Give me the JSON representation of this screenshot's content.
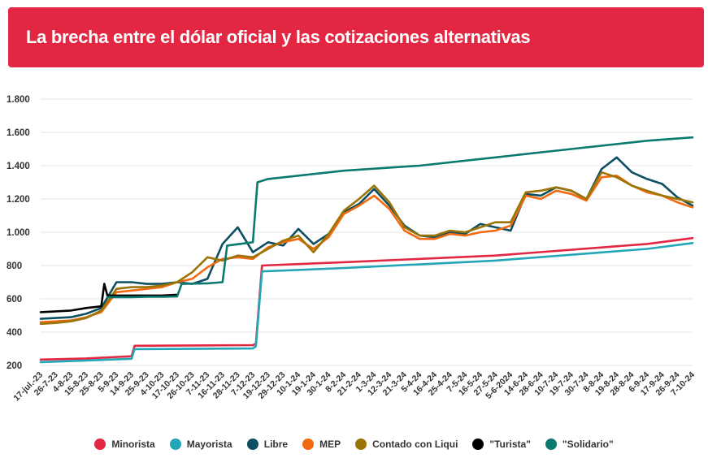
{
  "header": {
    "title": "La brecha entre el dólar oficial y las cotizaciones alternativas"
  },
  "chart_data": {
    "type": "line",
    "title": "La brecha entre el dólar oficial y las cotizaciones alternativas",
    "ylim": [
      200,
      1800
    ],
    "yticks": [
      200,
      400,
      600,
      800,
      1000,
      1200,
      1400,
      1600,
      1800
    ],
    "ytick_labels": [
      "200",
      "400",
      "600",
      "800",
      "1.000",
      "1.200",
      "1.400",
      "1.600",
      "1.800"
    ],
    "grid": true,
    "legend_position": "bottom",
    "x_labels": [
      "17-jul.-23",
      "26-7-23",
      "4-8-23",
      "15-8-23",
      "25-8-23",
      "5-9-23",
      "14-9-23",
      "25-9-23",
      "4-10-23",
      "17-10-23",
      "26-10-23",
      "7-11-23",
      "16-11-23",
      "28-11-23",
      "7-12-23",
      "19-12-23",
      "29-12-23",
      "10-1-24",
      "19-1-24",
      "30-1-24",
      "8-2-24",
      "21-2-24",
      "1-3-24",
      "12-3-24",
      "21-3-24",
      "5-4-24",
      "16-4-24",
      "25-4-24",
      "7-5-24",
      "16-5-24",
      "27-5-24",
      "5-6-2024",
      "14-6-24",
      "28-6-24",
      "10-7-24",
      "19-7-24",
      "30-7-24",
      "8-8-24",
      "19-8-24",
      "28-8-24",
      "6-9-24",
      "17-9-24",
      "26-9-24",
      "7-10-24"
    ],
    "series": [
      {
        "name": "Minorista",
        "color": "#e32641",
        "values": [
          [
            0,
            235
          ],
          [
            3,
            242
          ],
          [
            6,
            255
          ],
          [
            6.2,
            318
          ],
          [
            14,
            322
          ],
          [
            14.2,
            330
          ],
          [
            14.6,
            800
          ],
          [
            20,
            820
          ],
          [
            30,
            860
          ],
          [
            40,
            930
          ],
          [
            43,
            965
          ]
        ]
      },
      {
        "name": "Mayorista",
        "color": "#23a6b8",
        "values": [
          [
            0,
            220
          ],
          [
            3,
            230
          ],
          [
            6,
            240
          ],
          [
            6.2,
            298
          ],
          [
            14,
            302
          ],
          [
            14.2,
            315
          ],
          [
            14.6,
            765
          ],
          [
            20,
            785
          ],
          [
            30,
            830
          ],
          [
            40,
            900
          ],
          [
            43,
            935
          ]
        ]
      },
      {
        "name": "Libre",
        "color": "#0d4e62",
        "values": [
          [
            0,
            480
          ],
          [
            1,
            485
          ],
          [
            2,
            490
          ],
          [
            3,
            510
          ],
          [
            4,
            545
          ],
          [
            5,
            700
          ],
          [
            6,
            700
          ],
          [
            7,
            690
          ],
          [
            8,
            690
          ],
          [
            9,
            700
          ],
          [
            10,
            690
          ],
          [
            11,
            720
          ],
          [
            12,
            930
          ],
          [
            13,
            1030
          ],
          [
            14,
            880
          ],
          [
            15,
            940
          ],
          [
            16,
            920
          ],
          [
            17,
            1020
          ],
          [
            18,
            930
          ],
          [
            19,
            990
          ],
          [
            20,
            1120
          ],
          [
            21,
            1170
          ],
          [
            22,
            1260
          ],
          [
            23,
            1160
          ],
          [
            24,
            1040
          ],
          [
            25,
            980
          ],
          [
            26,
            970
          ],
          [
            27,
            1000
          ],
          [
            28,
            990
          ],
          [
            29,
            1050
          ],
          [
            30,
            1030
          ],
          [
            31,
            1010
          ],
          [
            32,
            1230
          ],
          [
            33,
            1220
          ],
          [
            34,
            1270
          ],
          [
            35,
            1250
          ],
          [
            36,
            1200
          ],
          [
            37,
            1380
          ],
          [
            38,
            1450
          ],
          [
            39,
            1360
          ],
          [
            40,
            1320
          ],
          [
            41,
            1290
          ],
          [
            42,
            1210
          ],
          [
            43,
            1160
          ]
        ]
      },
      {
        "name": "MEP",
        "color": "#f26a0f",
        "values": [
          [
            0,
            460
          ],
          [
            1,
            465
          ],
          [
            2,
            470
          ],
          [
            3,
            490
          ],
          [
            4,
            520
          ],
          [
            5,
            640
          ],
          [
            6,
            650
          ],
          [
            7,
            660
          ],
          [
            8,
            670
          ],
          [
            9,
            700
          ],
          [
            10,
            720
          ],
          [
            11,
            790
          ],
          [
            12,
            840
          ],
          [
            13,
            850
          ],
          [
            14,
            840
          ],
          [
            15,
            910
          ],
          [
            16,
            940
          ],
          [
            17,
            960
          ],
          [
            18,
            900
          ],
          [
            19,
            970
          ],
          [
            20,
            1110
          ],
          [
            21,
            1160
          ],
          [
            22,
            1220
          ],
          [
            23,
            1140
          ],
          [
            24,
            1010
          ],
          [
            25,
            960
          ],
          [
            26,
            960
          ],
          [
            27,
            990
          ],
          [
            28,
            980
          ],
          [
            29,
            1000
          ],
          [
            30,
            1010
          ],
          [
            31,
            1040
          ],
          [
            32,
            1220
          ],
          [
            33,
            1200
          ],
          [
            34,
            1250
          ],
          [
            35,
            1230
          ],
          [
            36,
            1190
          ],
          [
            37,
            1330
          ],
          [
            38,
            1340
          ],
          [
            39,
            1280
          ],
          [
            40,
            1240
          ],
          [
            41,
            1220
          ],
          [
            42,
            1180
          ],
          [
            43,
            1150
          ]
        ]
      },
      {
        "name": "Contado con Liqui",
        "color": "#9b7406",
        "values": [
          [
            0,
            450
          ],
          [
            1,
            455
          ],
          [
            2,
            465
          ],
          [
            3,
            485
          ],
          [
            4,
            530
          ],
          [
            5,
            660
          ],
          [
            6,
            670
          ],
          [
            7,
            670
          ],
          [
            8,
            680
          ],
          [
            9,
            700
          ],
          [
            10,
            760
          ],
          [
            11,
            850
          ],
          [
            12,
            830
          ],
          [
            13,
            860
          ],
          [
            14,
            850
          ],
          [
            15,
            900
          ],
          [
            16,
            950
          ],
          [
            17,
            980
          ],
          [
            18,
            880
          ],
          [
            19,
            990
          ],
          [
            20,
            1130
          ],
          [
            21,
            1200
          ],
          [
            22,
            1280
          ],
          [
            23,
            1180
          ],
          [
            24,
            1030
          ],
          [
            25,
            980
          ],
          [
            26,
            980
          ],
          [
            27,
            1010
          ],
          [
            28,
            1000
          ],
          [
            29,
            1030
          ],
          [
            30,
            1060
          ],
          [
            31,
            1060
          ],
          [
            32,
            1240
          ],
          [
            33,
            1250
          ],
          [
            34,
            1270
          ],
          [
            35,
            1250
          ],
          [
            36,
            1200
          ],
          [
            37,
            1360
          ],
          [
            38,
            1330
          ],
          [
            39,
            1280
          ],
          [
            40,
            1250
          ],
          [
            41,
            1220
          ],
          [
            42,
            1200
          ],
          [
            43,
            1180
          ]
        ]
      },
      {
        "name": "\"Turista\"",
        "color": "#000000",
        "values": [
          [
            0,
            520
          ],
          [
            1,
            525
          ],
          [
            2,
            530
          ],
          [
            3,
            545
          ],
          [
            4,
            555
          ],
          [
            4.2,
            690
          ],
          [
            4.4,
            620
          ],
          [
            6,
            620
          ],
          [
            7,
            620
          ],
          [
            8,
            620
          ],
          [
            9,
            625
          ]
        ]
      },
      {
        "name": "\"Solidario\"",
        "color": "#0a7a70",
        "values": [
          [
            4.4,
            610
          ],
          [
            6,
            610
          ],
          [
            7,
            612
          ],
          [
            8,
            612
          ],
          [
            9,
            614
          ],
          [
            9.3,
            690
          ],
          [
            11,
            693
          ],
          [
            12,
            700
          ],
          [
            12.3,
            920
          ],
          [
            14,
            940
          ],
          [
            14.3,
            1300
          ],
          [
            15,
            1320
          ],
          [
            20,
            1370
          ],
          [
            25,
            1400
          ],
          [
            30,
            1450
          ],
          [
            35,
            1500
          ],
          [
            40,
            1550
          ],
          [
            43,
            1570
          ]
        ]
      }
    ]
  }
}
